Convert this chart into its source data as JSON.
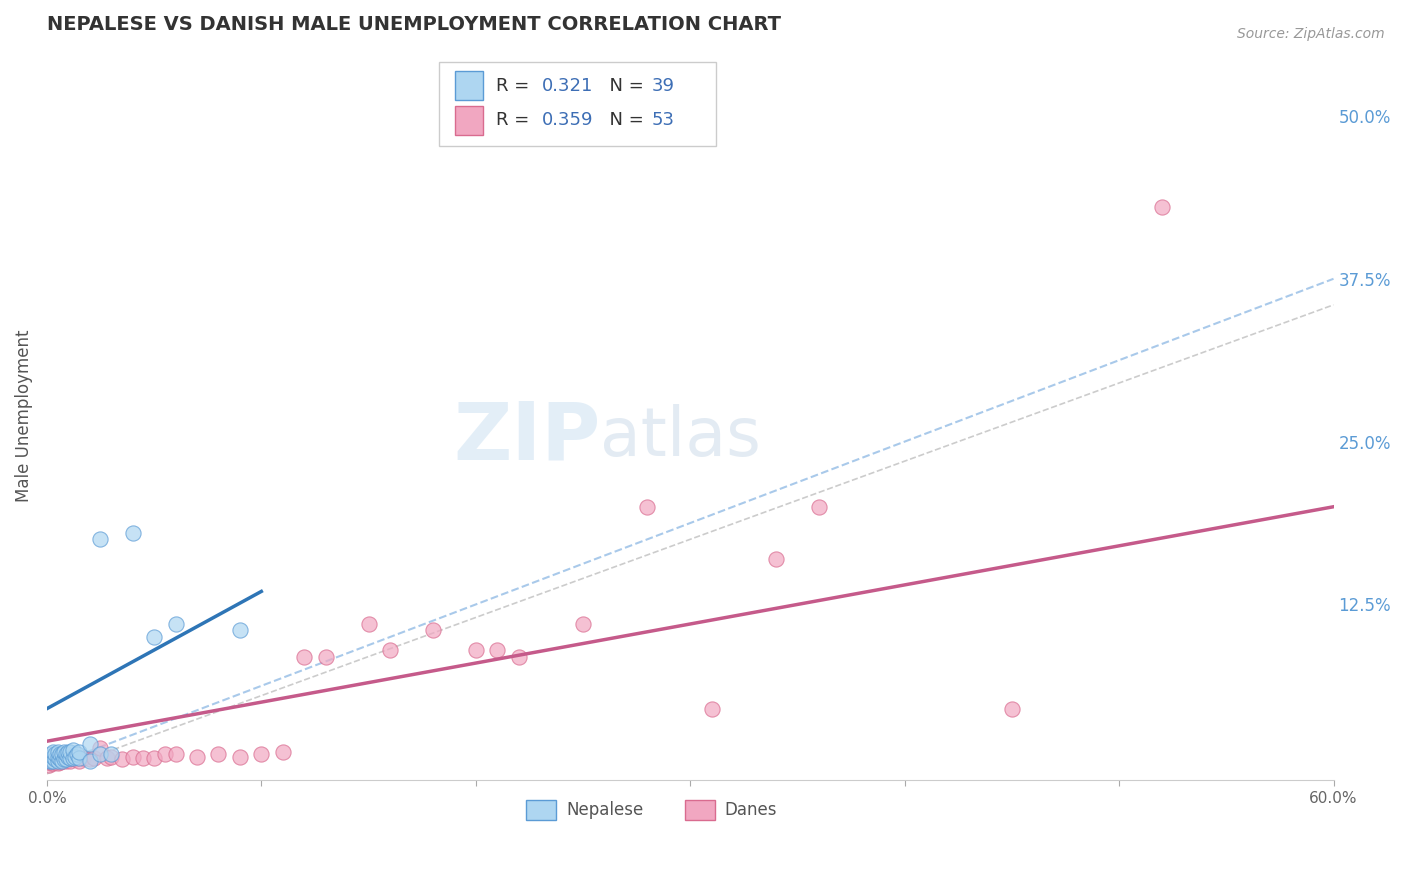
{
  "title": "NEPALESE VS DANISH MALE UNEMPLOYMENT CORRELATION CHART",
  "source": "Source: ZipAtlas.com",
  "ylabel": "Male Unemployment",
  "xlim": [
    0.0,
    0.6
  ],
  "ylim": [
    -0.01,
    0.55
  ],
  "xticks": [
    0.0,
    0.1,
    0.2,
    0.3,
    0.4,
    0.5,
    0.6
  ],
  "xticklabels": [
    "0.0%",
    "",
    "",
    "",
    "",
    "",
    "60.0%"
  ],
  "yticks_right": [
    0.125,
    0.25,
    0.375,
    0.5
  ],
  "yticklabels_right": [
    "12.5%",
    "25.0%",
    "37.5%",
    "50.0%"
  ],
  "color_nepalese_fill": "#AED6F1",
  "color_nepalese_edge": "#5B9BD5",
  "color_danes_fill": "#F1A7C1",
  "color_danes_edge": "#D96B8F",
  "color_line_nepalese": "#2E75B6",
  "color_line_danes": "#C55A8A",
  "color_dashed": "#A0C4E8",
  "color_dashed_gray": "#AAAAAA",
  "background_color": "#FFFFFF",
  "grid_color": "#D0D0D0",
  "watermark_zip": "ZIP",
  "watermark_atlas": "atlas",
  "nepalese_x": [
    0.001,
    0.001,
    0.002,
    0.002,
    0.003,
    0.003,
    0.003,
    0.004,
    0.004,
    0.005,
    0.005,
    0.005,
    0.006,
    0.006,
    0.007,
    0.007,
    0.008,
    0.008,
    0.009,
    0.009,
    0.01,
    0.01,
    0.011,
    0.011,
    0.012,
    0.012,
    0.013,
    0.014,
    0.015,
    0.015,
    0.02,
    0.02,
    0.025,
    0.025,
    0.03,
    0.04,
    0.05,
    0.06,
    0.09
  ],
  "nepalese_y": [
    0.005,
    0.008,
    0.005,
    0.01,
    0.005,
    0.008,
    0.012,
    0.006,
    0.01,
    0.005,
    0.008,
    0.012,
    0.006,
    0.01,
    0.005,
    0.01,
    0.006,
    0.012,
    0.006,
    0.01,
    0.008,
    0.012,
    0.007,
    0.012,
    0.007,
    0.013,
    0.008,
    0.01,
    0.007,
    0.012,
    0.005,
    0.018,
    0.01,
    0.175,
    0.01,
    0.18,
    0.1,
    0.11,
    0.105
  ],
  "danes_x": [
    0.001,
    0.001,
    0.001,
    0.002,
    0.002,
    0.003,
    0.003,
    0.004,
    0.004,
    0.005,
    0.005,
    0.006,
    0.006,
    0.007,
    0.008,
    0.009,
    0.01,
    0.011,
    0.012,
    0.013,
    0.015,
    0.017,
    0.02,
    0.022,
    0.025,
    0.028,
    0.03,
    0.035,
    0.04,
    0.045,
    0.05,
    0.055,
    0.06,
    0.07,
    0.08,
    0.09,
    0.1,
    0.11,
    0.12,
    0.13,
    0.15,
    0.16,
    0.18,
    0.2,
    0.21,
    0.22,
    0.25,
    0.28,
    0.31,
    0.34,
    0.36,
    0.45,
    0.52
  ],
  "danes_y": [
    0.002,
    0.005,
    0.008,
    0.003,
    0.007,
    0.003,
    0.008,
    0.004,
    0.009,
    0.003,
    0.008,
    0.004,
    0.008,
    0.005,
    0.006,
    0.005,
    0.006,
    0.005,
    0.007,
    0.006,
    0.005,
    0.007,
    0.006,
    0.007,
    0.015,
    0.007,
    0.008,
    0.006,
    0.008,
    0.007,
    0.007,
    0.01,
    0.01,
    0.008,
    0.01,
    0.008,
    0.01,
    0.012,
    0.085,
    0.085,
    0.11,
    0.09,
    0.105,
    0.09,
    0.09,
    0.085,
    0.11,
    0.2,
    0.045,
    0.16,
    0.2,
    0.045,
    0.43
  ]
}
